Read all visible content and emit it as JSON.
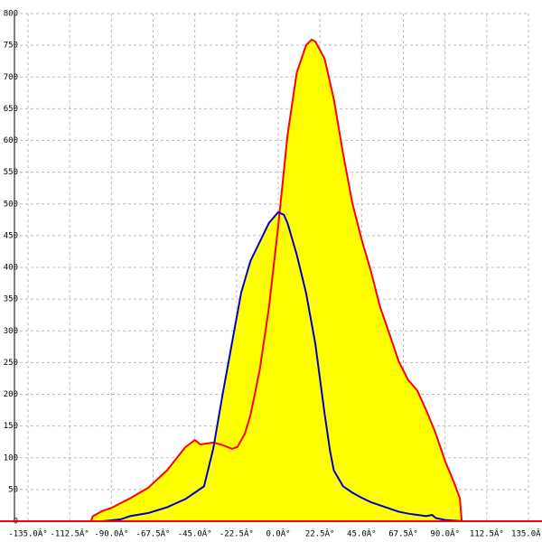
{
  "chart_data": {
    "type": "area",
    "xlim": [
      -135,
      135
    ],
    "ylim": [
      0,
      800
    ],
    "xticks": [
      {
        "value": -135,
        "label": "-135.0Â°"
      },
      {
        "value": -112.5,
        "label": "-112.5Â°"
      },
      {
        "value": -90,
        "label": "-90.0Â°"
      },
      {
        "value": -67.5,
        "label": "-67.5Â°"
      },
      {
        "value": -45,
        "label": "-45.0Â°"
      },
      {
        "value": -22.5,
        "label": "-22.5Â°"
      },
      {
        "value": 0,
        "label": "0.0Â°"
      },
      {
        "value": 22.5,
        "label": "22.5Â°"
      },
      {
        "value": 45,
        "label": "45.0Â°"
      },
      {
        "value": 67.5,
        "label": "67.5Â°"
      },
      {
        "value": 90,
        "label": "90.0Â°"
      },
      {
        "value": 112.5,
        "label": "112.5Â°"
      },
      {
        "value": 135,
        "label": "135.0Â°"
      }
    ],
    "yticks": [
      0,
      50,
      100,
      150,
      200,
      250,
      300,
      350,
      400,
      450,
      500,
      550,
      600,
      650,
      700,
      750,
      800
    ],
    "grid": true,
    "fill": "#ffff00",
    "axis_color": "#ff0000",
    "series": [
      {
        "color": "#ff0000",
        "x": [
          -101,
          -100,
          -95,
          -90,
          -80,
          -70,
          -67.5,
          -60,
          -56,
          -50,
          -45,
          -42,
          -35,
          -30,
          -25,
          -22,
          -18,
          -15,
          -10,
          -5,
          0,
          5,
          10,
          15,
          18,
          20,
          25,
          30,
          35,
          40,
          45,
          50,
          55,
          60,
          65,
          70,
          75,
          80,
          85,
          90,
          95,
          98,
          99
        ],
        "values": [
          0,
          8,
          16,
          21,
          36,
          53,
          60,
          80,
          95,
          117,
          128,
          121,
          124,
          120,
          114,
          117,
          138,
          167,
          238,
          337,
          465,
          608,
          707,
          750,
          759,
          756,
          729,
          665,
          579,
          501,
          444,
          394,
          337,
          295,
          252,
          223,
          206,
          174,
          138,
          95,
          60,
          36,
          0
        ]
      },
      {
        "color": "#0000cc",
        "x": [
          -100,
          -95,
          -85,
          -80,
          -70,
          -60,
          -50,
          -45,
          -40,
          -35,
          -30,
          -25,
          -20,
          -15,
          -10,
          -5,
          0,
          3,
          5,
          10,
          15,
          20,
          25,
          28,
          30,
          35,
          40,
          45,
          50,
          55,
          60,
          65,
          70,
          75,
          80,
          83,
          85,
          90,
          100
        ],
        "values": [
          0,
          0,
          3,
          8,
          13,
          22,
          35,
          45,
          55,
          115,
          200,
          280,
          360,
          410,
          440,
          470,
          487,
          483,
          470,
          420,
          360,
          280,
          170,
          110,
          80,
          55,
          45,
          37,
          30,
          25,
          20,
          15,
          12,
          10,
          8,
          10,
          5,
          2,
          0
        ]
      }
    ]
  }
}
